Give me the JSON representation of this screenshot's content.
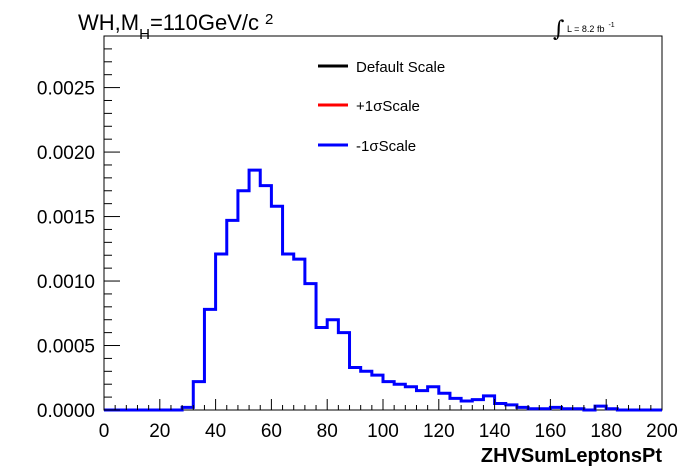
{
  "chart_data": {
    "type": "line",
    "title_parts": {
      "main": "WH,M",
      "sub": "H",
      "rest": "=110GeV/c",
      "sup": "2"
    },
    "lumi_label": {
      "text": "L = 8.2 fb",
      "sup": "-1"
    },
    "xlabel": "ZHVSumLeptonsPt",
    "ylabel": "",
    "xlim": [
      0,
      200
    ],
    "ylim": [
      0,
      0.0029
    ],
    "x_ticks": [
      0,
      20,
      40,
      60,
      80,
      100,
      120,
      140,
      160,
      180,
      200
    ],
    "x_tick_labels": [
      "0",
      "20",
      "40",
      "60",
      "80",
      "100",
      "120",
      "140",
      "160",
      "180",
      "200"
    ],
    "y_ticks": [
      0,
      0.0005,
      0.001,
      0.0015,
      0.002,
      0.0025
    ],
    "y_tick_labels": [
      "0.0000",
      "0.0005",
      "0.0010",
      "0.0015",
      "0.0020",
      "0.0025"
    ],
    "legend_position": "top-center",
    "legend": [
      {
        "label": "Default Scale",
        "color": "#000000"
      },
      {
        "label": "+1σScale",
        "color": "#ff0000"
      },
      {
        "label": "-1σScale",
        "color": "#0000ff"
      }
    ],
    "bin_width": 4,
    "bin_edges_start": 0,
    "series": [
      {
        "name": "-1σScale",
        "color": "#0000ff",
        "values": [
          0,
          0,
          0,
          0,
          0,
          0,
          0,
          2e-05,
          0.00022,
          0.00078,
          0.00121,
          0.00147,
          0.0017,
          0.00186,
          0.00174,
          0.00158,
          0.00121,
          0.00117,
          0.00098,
          0.00064,
          0.0007,
          0.0006,
          0.00033,
          0.0003,
          0.00027,
          0.00022,
          0.0002,
          0.00018,
          0.00015,
          0.00018,
          0.00013,
          9e-05,
          7e-05,
          8e-05,
          0.00011,
          5e-05,
          4e-05,
          2e-05,
          1e-05,
          1e-05,
          2e-05,
          1e-05,
          1e-05,
          0,
          3e-05,
          1e-05,
          0,
          0,
          0,
          0
        ]
      }
    ]
  }
}
